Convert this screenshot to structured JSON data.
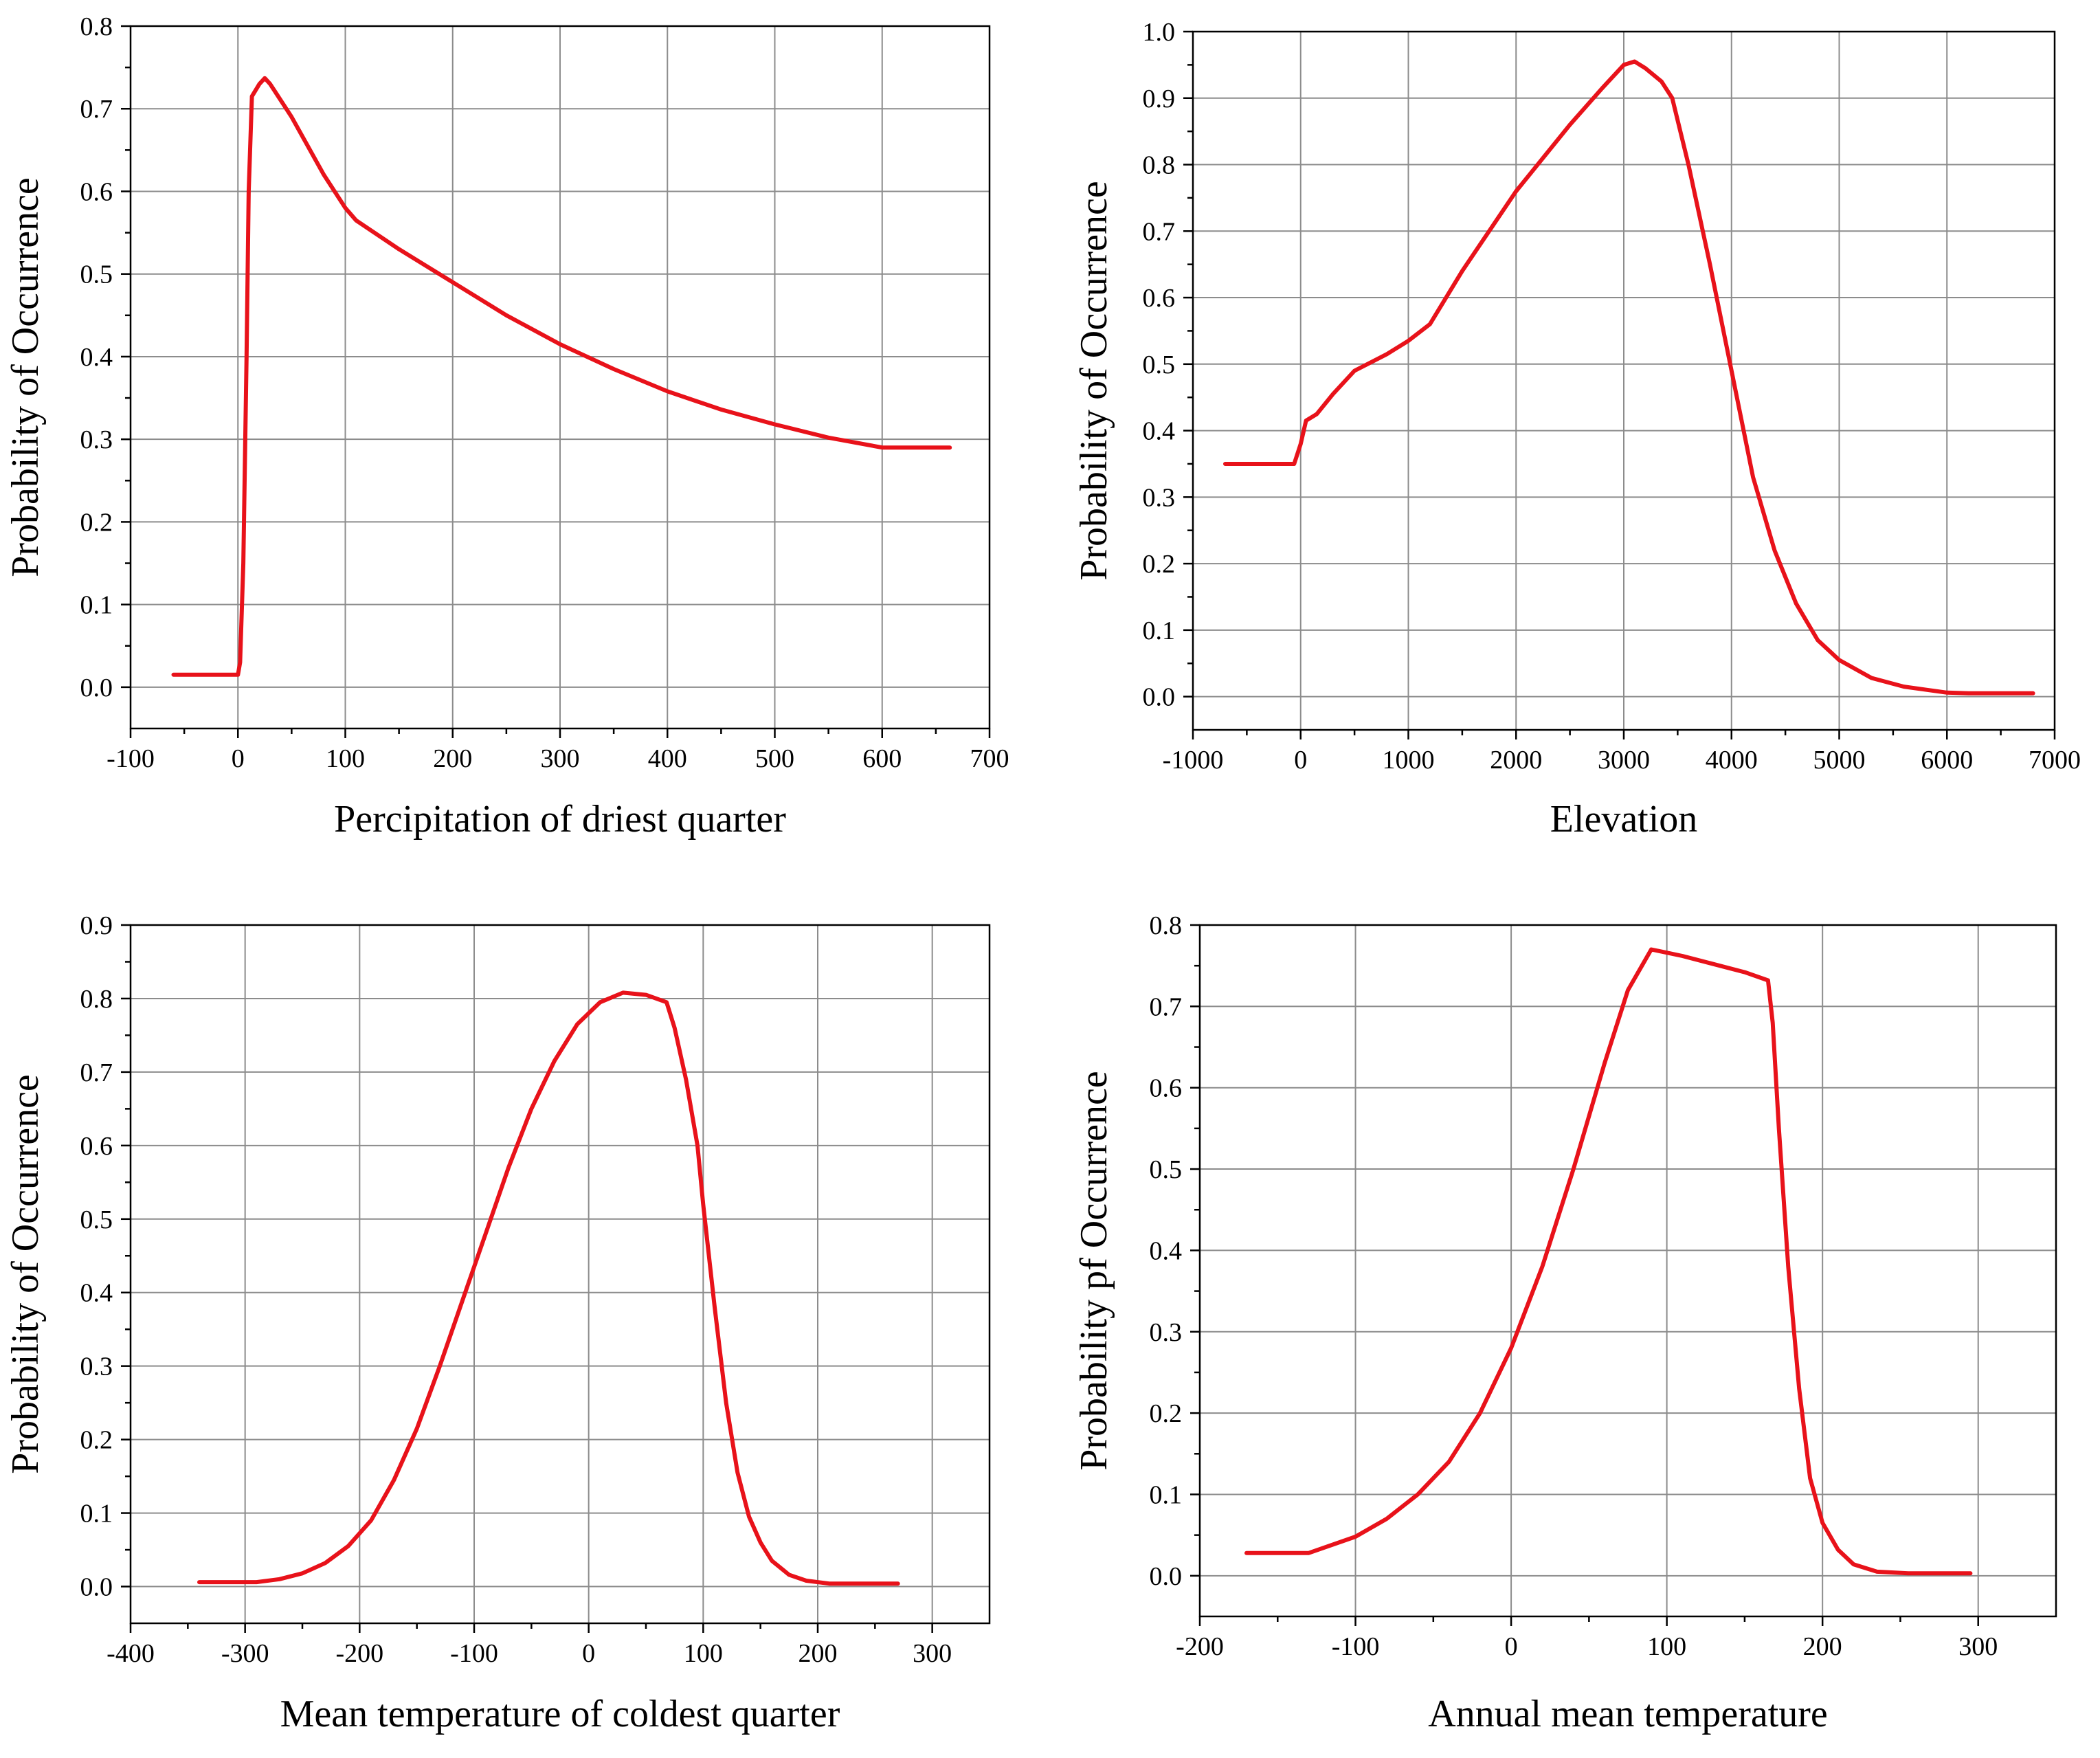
{
  "chart_data": [
    {
      "type": "line",
      "name": "precip-driest-quarter",
      "xlabel": "Percipitation of driest quarter",
      "ylabel": "Probability of Occurrence",
      "xlim": [
        -100,
        700
      ],
      "ylim": [
        -0.05,
        0.8
      ],
      "xticks": [
        -100,
        0,
        100,
        200,
        300,
        400,
        500,
        600,
        700
      ],
      "yticks": [
        0.0,
        0.1,
        0.2,
        0.3,
        0.4,
        0.5,
        0.6,
        0.7,
        0.8
      ],
      "xtick_labels": [
        "-100",
        "0",
        "100",
        "200",
        "300",
        "400",
        "500",
        "600",
        "700"
      ],
      "ytick_labels": [
        "0.0",
        "0.1",
        "0.2",
        "0.3",
        "0.4",
        "0.5",
        "0.6",
        "0.7",
        "0.8"
      ],
      "grid": true,
      "color": "#e8121a",
      "series": [
        {
          "name": "response",
          "x": [
            -60,
            0,
            2,
            5,
            8,
            10,
            13,
            20,
            25,
            30,
            50,
            80,
            100,
            110,
            150,
            200,
            250,
            300,
            350,
            400,
            450,
            500,
            550,
            600,
            663
          ],
          "y": [
            0.015,
            0.015,
            0.03,
            0.15,
            0.4,
            0.6,
            0.715,
            0.73,
            0.737,
            0.73,
            0.69,
            0.62,
            0.58,
            0.565,
            0.53,
            0.49,
            0.45,
            0.415,
            0.385,
            0.358,
            0.336,
            0.318,
            0.302,
            0.29,
            0.29
          ]
        }
      ]
    },
    {
      "type": "line",
      "name": "elevation",
      "xlabel": "Elevation",
      "ylabel": "Probability of Occurrence",
      "xlim": [
        -1000,
        7000
      ],
      "ylim": [
        -0.05,
        1.0
      ],
      "xticks": [
        -1000,
        0,
        1000,
        2000,
        3000,
        4000,
        5000,
        6000,
        7000
      ],
      "yticks": [
        0.0,
        0.1,
        0.2,
        0.3,
        0.4,
        0.5,
        0.6,
        0.7,
        0.8,
        0.9,
        1.0
      ],
      "xtick_labels": [
        "-1000",
        "0",
        "1000",
        "2000",
        "3000",
        "4000",
        "5000",
        "6000",
        "7000"
      ],
      "ytick_labels": [
        "0.0",
        "0.1",
        "0.2",
        "0.3",
        "0.4",
        "0.5",
        "0.6",
        "0.7",
        "0.8",
        "0.9",
        "1.0"
      ],
      "grid": true,
      "color": "#e8121a",
      "series": [
        {
          "name": "response",
          "x": [
            -700,
            -60,
            0,
            50,
            150,
            300,
            500,
            800,
            1000,
            1200,
            1500,
            2000,
            2500,
            2800,
            3000,
            3100,
            3200,
            3350,
            3450,
            3600,
            3800,
            4000,
            4200,
            4400,
            4600,
            4800,
            5000,
            5300,
            5600,
            6000,
            6200,
            6800
          ],
          "y": [
            0.35,
            0.35,
            0.38,
            0.415,
            0.425,
            0.455,
            0.49,
            0.515,
            0.535,
            0.56,
            0.64,
            0.76,
            0.86,
            0.915,
            0.95,
            0.955,
            0.945,
            0.925,
            0.9,
            0.8,
            0.65,
            0.49,
            0.33,
            0.22,
            0.14,
            0.085,
            0.055,
            0.028,
            0.015,
            0.006,
            0.005,
            0.005
          ]
        }
      ]
    },
    {
      "type": "line",
      "name": "mean-temp-coldest-quarter",
      "xlabel": "Mean temperature of coldest quarter",
      "ylabel": "Probability of Occurrence",
      "xlim": [
        -400,
        350
      ],
      "ylim": [
        -0.05,
        0.9
      ],
      "xticks": [
        -400,
        -300,
        -200,
        -100,
        0,
        100,
        200,
        300
      ],
      "yticks": [
        0.0,
        0.1,
        0.2,
        0.3,
        0.4,
        0.5,
        0.6,
        0.7,
        0.8,
        0.9
      ],
      "xtick_labels": [
        "-400",
        "-300",
        "-200",
        "-100",
        "0",
        "100",
        "200",
        "300"
      ],
      "ytick_labels": [
        "0.0",
        "0.1",
        "0.2",
        "0.3",
        "0.4",
        "0.5",
        "0.6",
        "0.7",
        "0.8",
        "0.9"
      ],
      "grid": true,
      "color": "#e8121a",
      "series": [
        {
          "name": "response",
          "x": [
            -340,
            -290,
            -270,
            -250,
            -230,
            -210,
            -190,
            -170,
            -150,
            -130,
            -110,
            -90,
            -70,
            -50,
            -30,
            -10,
            10,
            30,
            50,
            68,
            75,
            85,
            95,
            100,
            110,
            120,
            130,
            140,
            150,
            160,
            175,
            190,
            210,
            230,
            270
          ],
          "y": [
            0.006,
            0.006,
            0.01,
            0.018,
            0.032,
            0.055,
            0.09,
            0.145,
            0.215,
            0.3,
            0.39,
            0.48,
            0.57,
            0.65,
            0.715,
            0.765,
            0.795,
            0.808,
            0.805,
            0.795,
            0.76,
            0.69,
            0.6,
            0.52,
            0.38,
            0.25,
            0.155,
            0.095,
            0.06,
            0.035,
            0.016,
            0.008,
            0.004,
            0.004,
            0.004
          ]
        }
      ]
    },
    {
      "type": "line",
      "name": "annual-mean-temperature",
      "xlabel": "Annual mean temperature",
      "ylabel": "Probability pf Occurrence",
      "xlim": [
        -200,
        350
      ],
      "ylim": [
        -0.05,
        0.8
      ],
      "xticks": [
        -200,
        -100,
        0,
        100,
        200,
        300
      ],
      "yticks": [
        0.0,
        0.1,
        0.2,
        0.3,
        0.4,
        0.5,
        0.6,
        0.7,
        0.8
      ],
      "xtick_labels": [
        "-200",
        "-100",
        "0",
        "100",
        "200",
        "300"
      ],
      "ytick_labels": [
        "0.0",
        "0.1",
        "0.2",
        "0.3",
        "0.4",
        "0.5",
        "0.6",
        "0.7",
        "0.8"
      ],
      "grid": true,
      "color": "#e8121a",
      "series": [
        {
          "name": "response",
          "x": [
            -170,
            -130,
            -100,
            -80,
            -60,
            -40,
            -20,
            0,
            20,
            40,
            60,
            75,
            90,
            110,
            130,
            150,
            165,
            168,
            172,
            178,
            185,
            192,
            200,
            210,
            220,
            235,
            255,
            295
          ],
          "y": [
            0.028,
            0.028,
            0.048,
            0.07,
            0.1,
            0.14,
            0.2,
            0.28,
            0.38,
            0.5,
            0.63,
            0.72,
            0.77,
            0.762,
            0.752,
            0.742,
            0.732,
            0.68,
            0.55,
            0.38,
            0.23,
            0.12,
            0.065,
            0.032,
            0.014,
            0.005,
            0.003,
            0.003
          ]
        }
      ]
    }
  ]
}
